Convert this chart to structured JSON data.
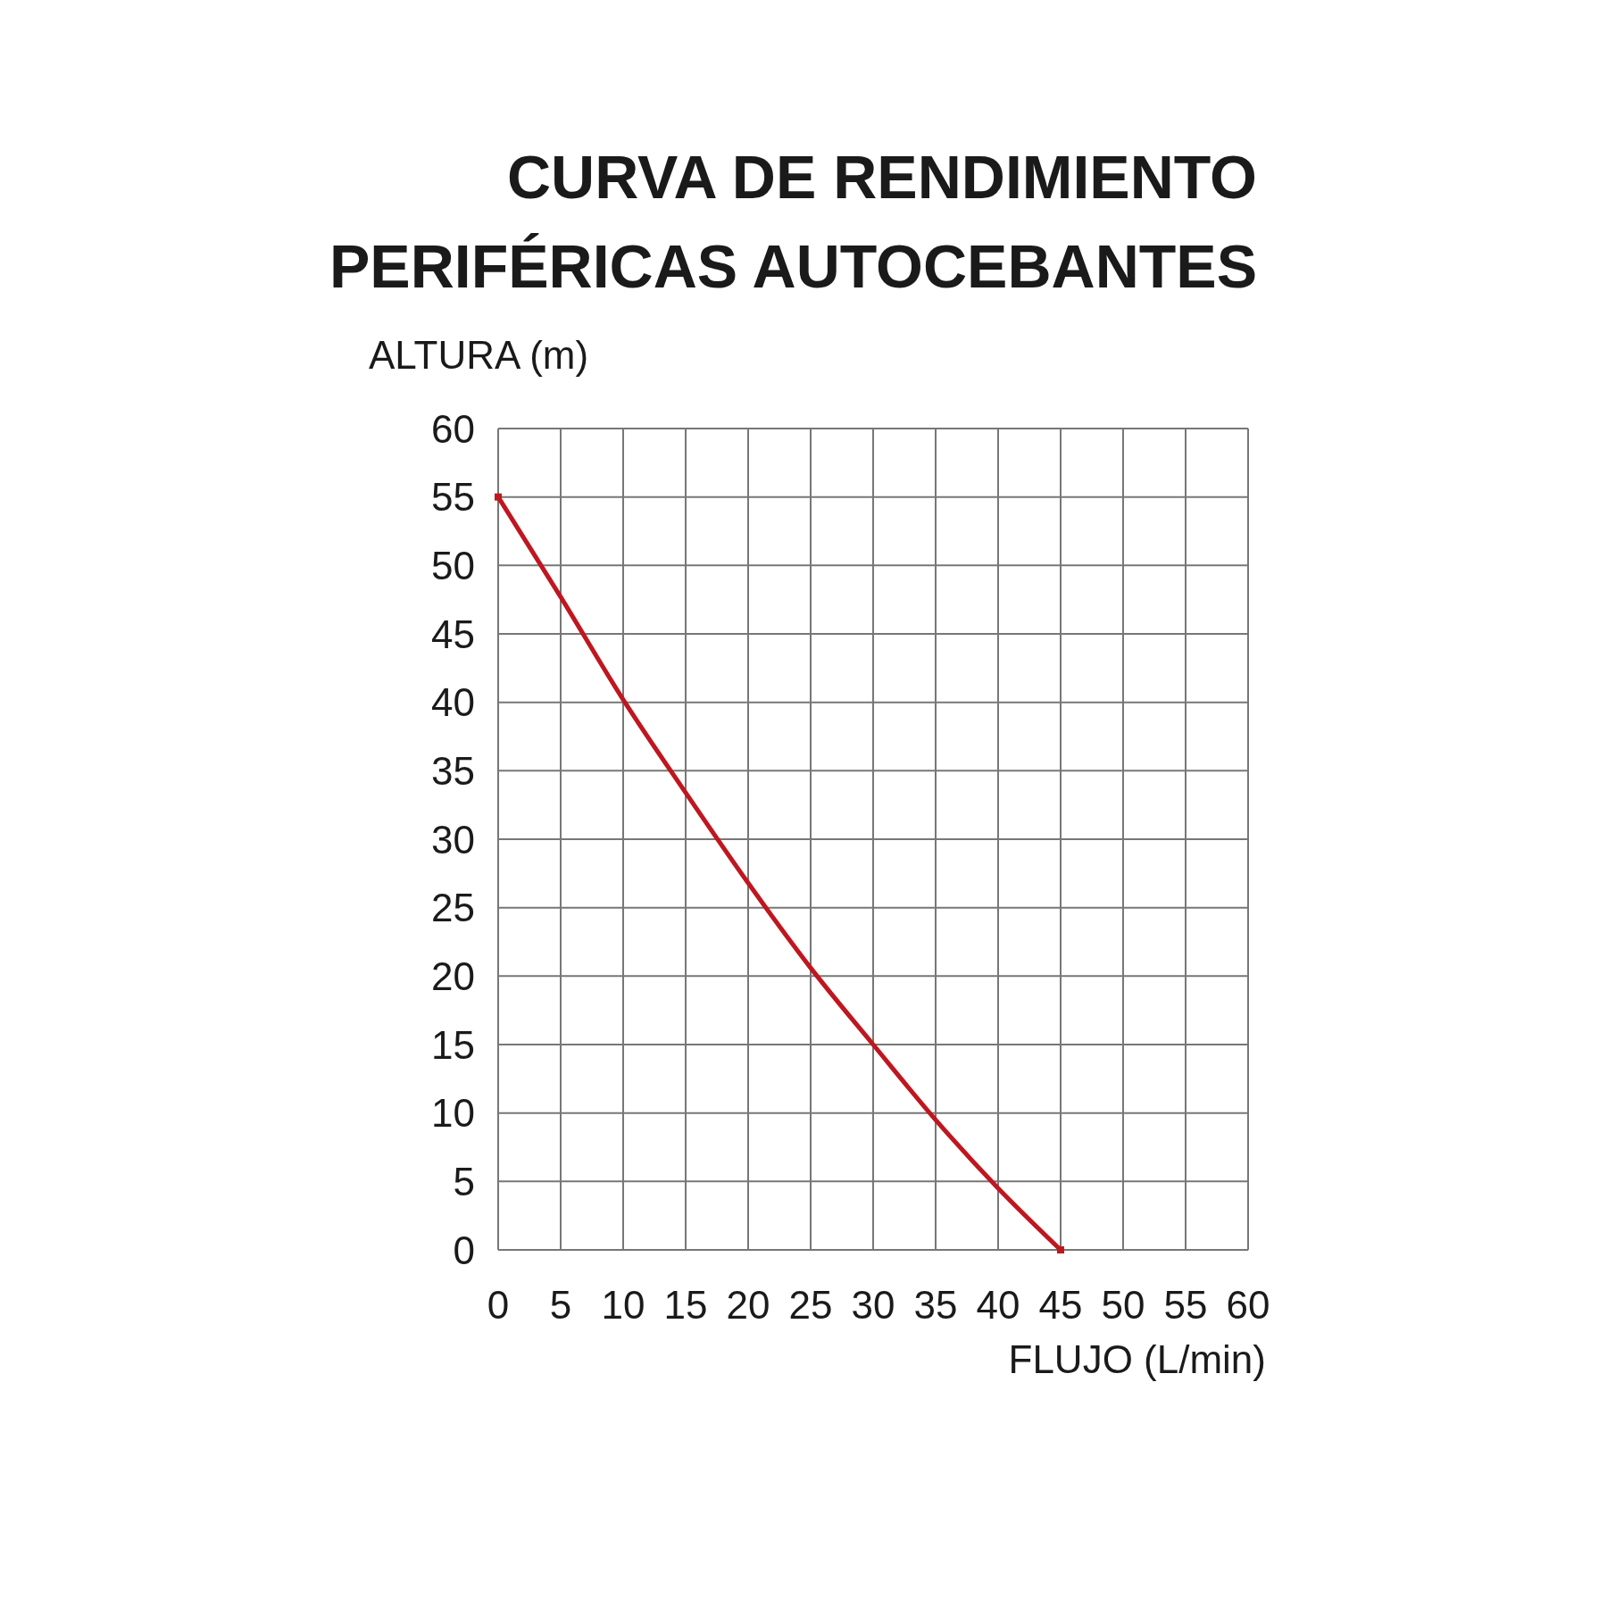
{
  "chart_data": {
    "type": "line",
    "title": "CURVA DE RENDIMIENTO\nPERIFÉRICAS AUTOCEBANTES",
    "xlabel": "FLUJO (L/min)",
    "ylabel": "ALTURA (m)",
    "x": [
      0,
      5,
      10,
      15,
      20,
      25,
      30,
      35,
      40,
      45
    ],
    "series": [
      {
        "color": "#c0161f",
        "values": [
          55,
          47.7,
          40.2,
          33.4,
          26.8,
          20.6,
          15,
          9.5,
          4.5,
          0
        ],
        "marker": "none"
      },
      {
        "type": "scatter",
        "color": "#c0161f",
        "x": [
          0,
          45
        ],
        "values": [
          55,
          0
        ],
        "marker": "square"
      }
    ],
    "xlim": [
      0,
      60
    ],
    "xticks": [
      0,
      5,
      10,
      15,
      20,
      25,
      30,
      35,
      40,
      45,
      50,
      55,
      60
    ],
    "ylim": [
      0,
      60
    ],
    "yticks": [
      0,
      5,
      10,
      15,
      20,
      25,
      30,
      35,
      40,
      45,
      50,
      55,
      60
    ],
    "grid": true,
    "line_style": "solid"
  }
}
